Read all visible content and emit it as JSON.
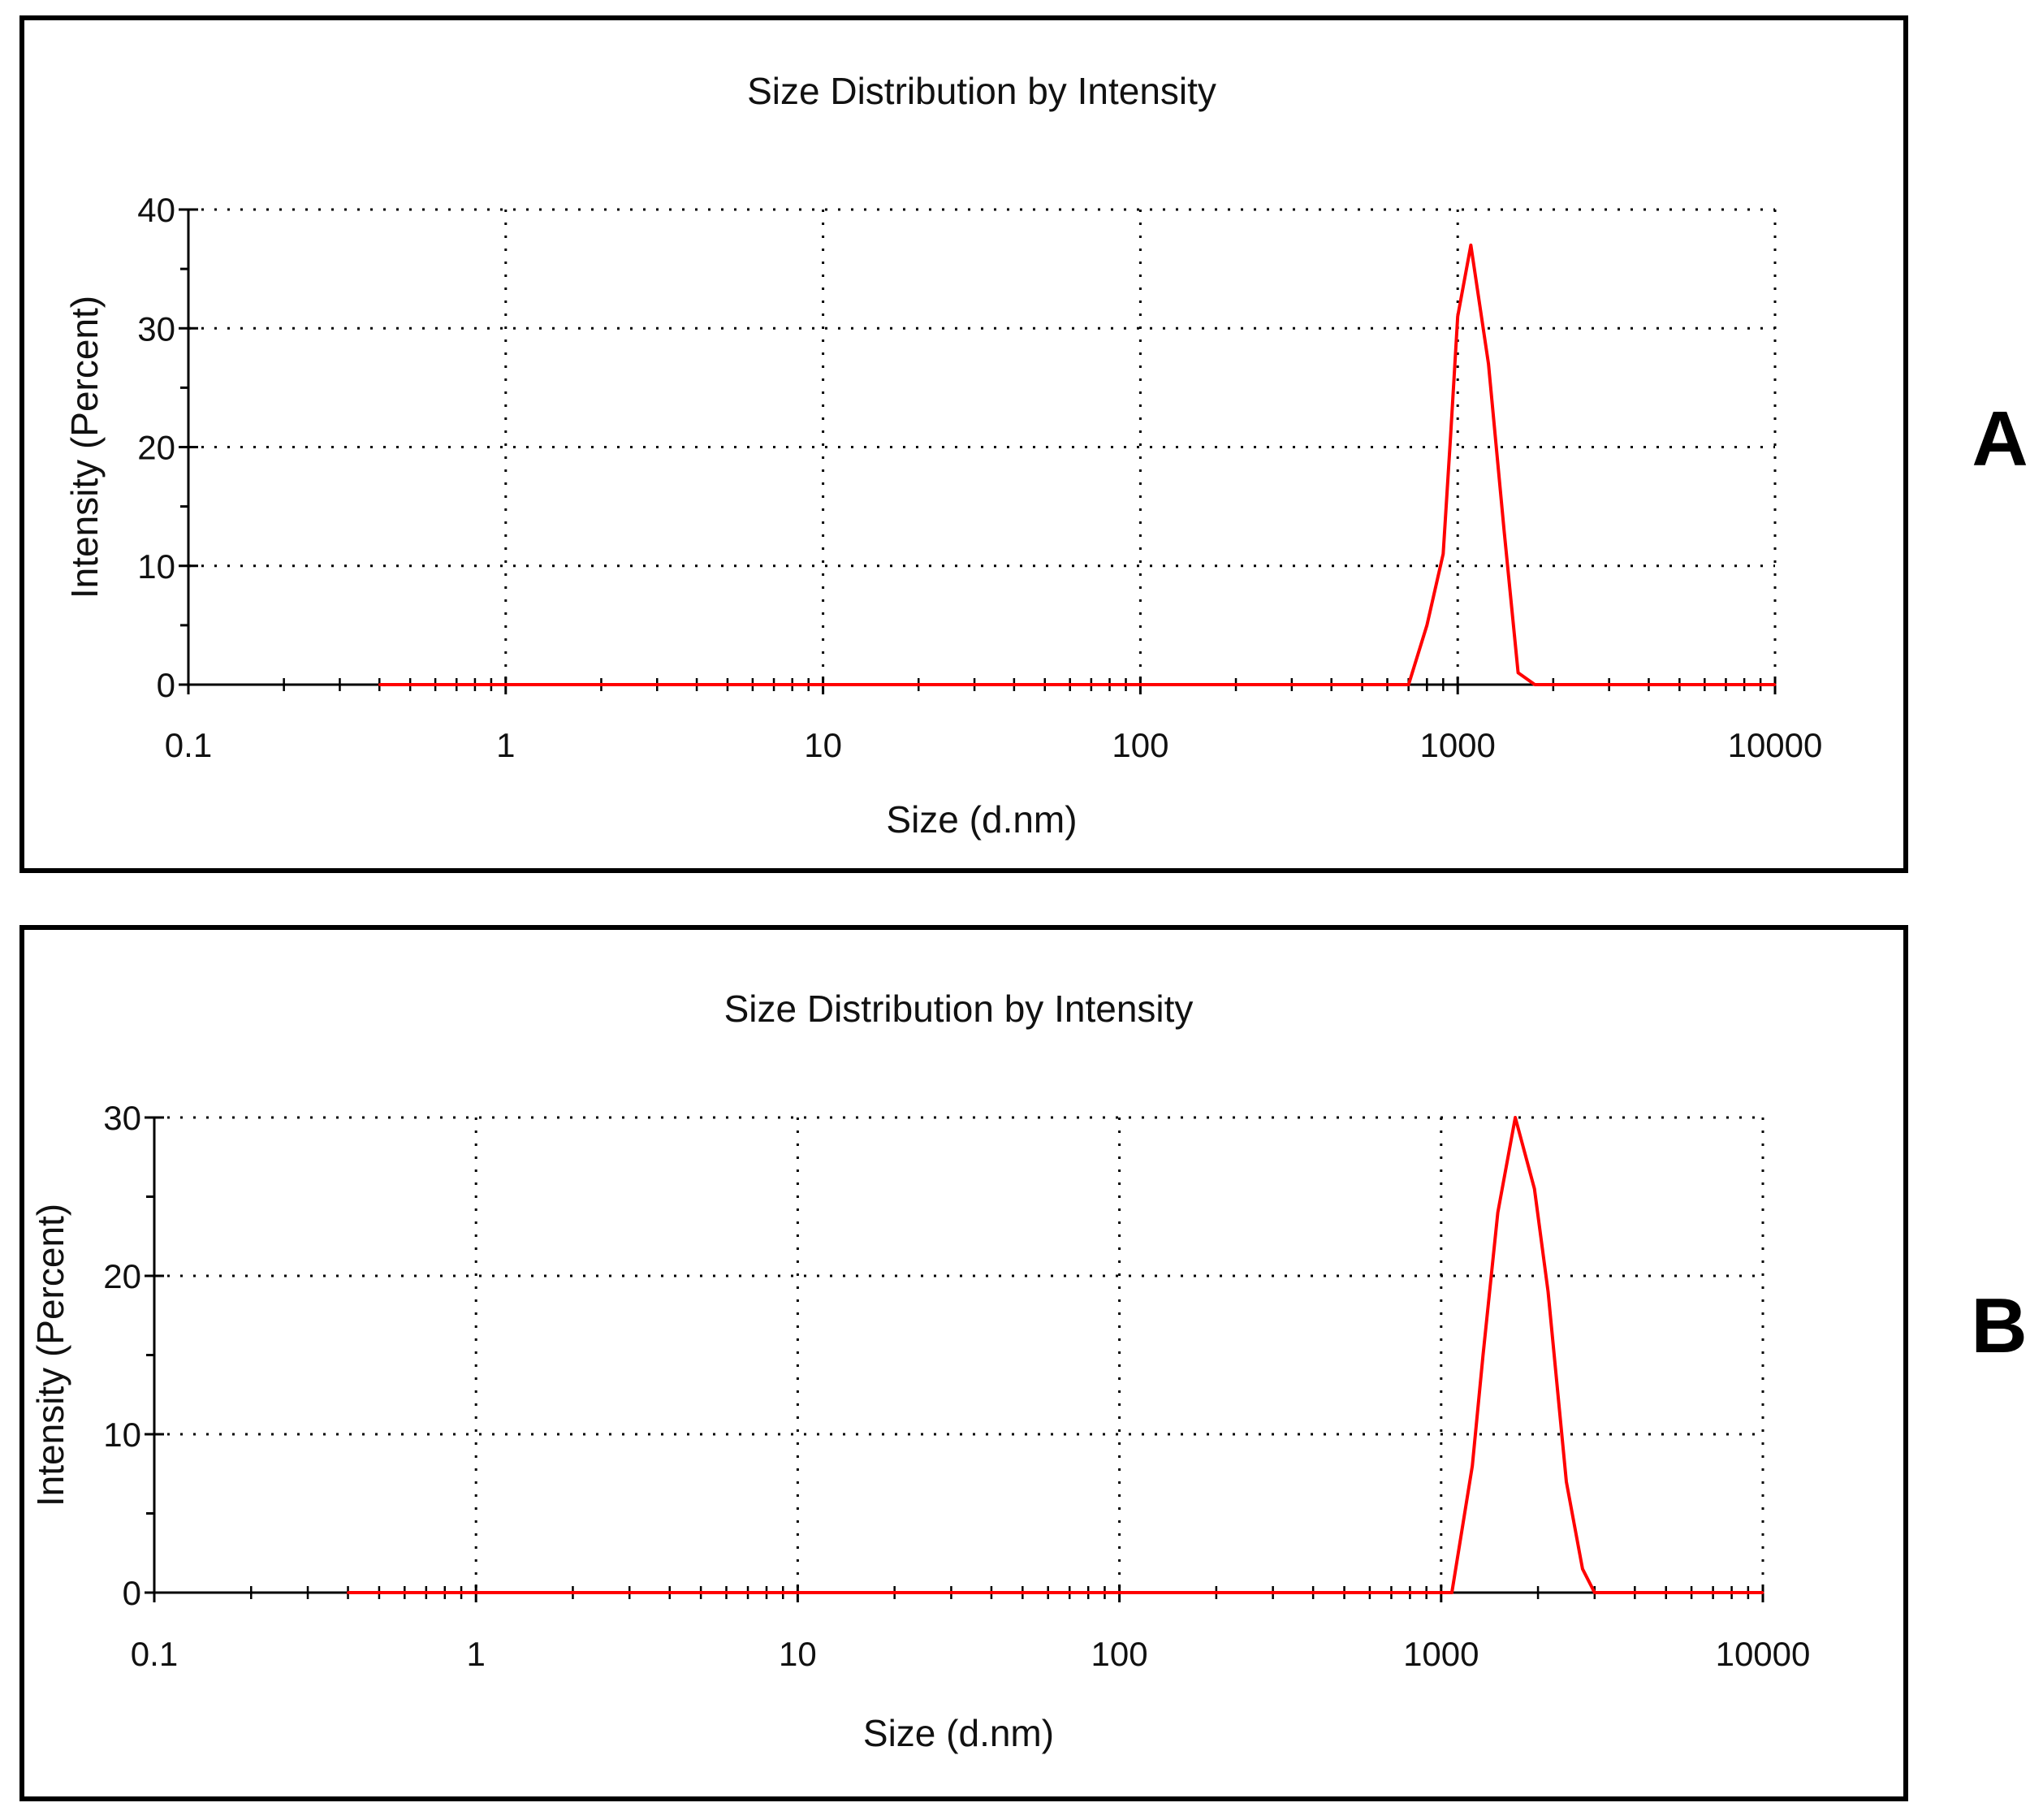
{
  "chart_data": [
    {
      "type": "line",
      "panel_label": "A",
      "title": "Size Distribution by Intensity",
      "xlabel": "Size (d.nm)",
      "ylabel": "Intensity (Percent)",
      "x_scale": "log",
      "xlim": [
        0.1,
        10000
      ],
      "ylim": [
        0,
        40
      ],
      "x_ticks": [
        0.1,
        1,
        10,
        100,
        1000,
        10000
      ],
      "x_tick_labels": [
        "0.1",
        "1",
        "10",
        "100",
        "1000",
        "10000"
      ],
      "y_ticks": [
        0,
        10,
        20,
        30,
        40
      ],
      "y_tick_labels": [
        "0",
        "10",
        "20",
        "30",
        "40"
      ],
      "grid": true,
      "series": [
        {
          "color": "#ff0000",
          "x": [
            0.4,
            700,
            800,
            900,
            950,
            1000,
            1100,
            1250,
            1400,
            1550,
            1750,
            2000,
            10000
          ],
          "y": [
            0,
            0,
            5,
            11,
            21,
            31,
            37,
            27,
            13,
            1,
            0,
            0,
            0
          ]
        }
      ]
    },
    {
      "type": "line",
      "panel_label": "B",
      "title": "Size Distribution by Intensity",
      "xlabel": "Size (d.nm)",
      "ylabel": "Intensity (Percent)",
      "x_scale": "log",
      "xlim": [
        0.1,
        10000
      ],
      "ylim": [
        0,
        30
      ],
      "x_ticks": [
        0.1,
        1,
        10,
        100,
        1000,
        10000
      ],
      "x_tick_labels": [
        "0.1",
        "1",
        "10",
        "100",
        "1000",
        "10000"
      ],
      "y_ticks": [
        0,
        10,
        20,
        30
      ],
      "y_tick_labels": [
        "0",
        "10",
        "20",
        "30"
      ],
      "grid": true,
      "series": [
        {
          "color": "#ff0000",
          "x": [
            0.4,
            1080,
            1250,
            1350,
            1500,
            1700,
            1950,
            2150,
            2450,
            2750,
            3000,
            10000
          ],
          "y": [
            0,
            0,
            8,
            15,
            24,
            30,
            25.5,
            19,
            7,
            1.5,
            0,
            0
          ]
        }
      ]
    }
  ]
}
